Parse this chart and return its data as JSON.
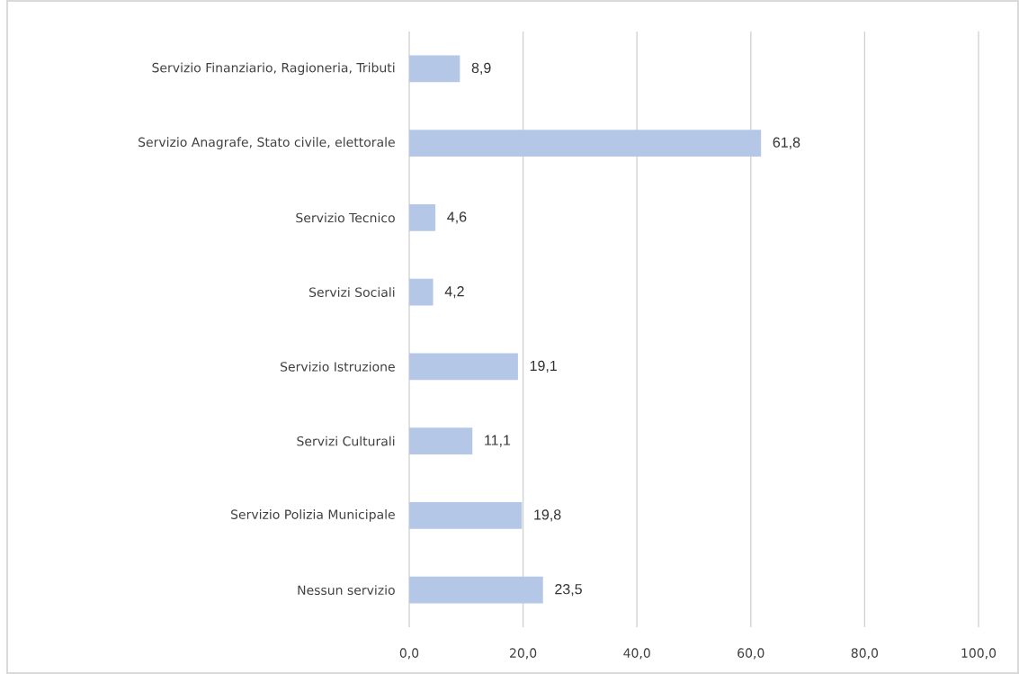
{
  "chart_data": {
    "type": "bar",
    "orientation": "horizontal",
    "categories": [
      "Servizio Finanziario, Ragioneria, Tributi",
      "Servizio Anagrafe, Stato civile, elettorale",
      "Servizio Tecnico",
      "Servizi Sociali",
      "Servizio Istruzione",
      "Servizi Culturali",
      "Servizio Polizia Municipale",
      "Nessun servizio"
    ],
    "values": [
      8.9,
      61.8,
      4.6,
      4.2,
      19.1,
      11.1,
      19.8,
      23.5
    ],
    "value_labels": [
      "8,9",
      "61,8",
      "4,6",
      "4,2",
      "19,1",
      "11,1",
      "19,8",
      "23,5"
    ],
    "color": "#b4c7e7",
    "xlim": [
      0,
      100
    ],
    "xticks": [
      {
        "value": 0,
        "label": "0,0"
      },
      {
        "value": 20,
        "label": "20,0"
      },
      {
        "value": 40,
        "label": "40,0"
      },
      {
        "value": 60,
        "label": "60,0"
      },
      {
        "value": 80,
        "label": "80,0"
      },
      {
        "value": 100,
        "label": "100,0"
      }
    ],
    "grid": "x"
  }
}
